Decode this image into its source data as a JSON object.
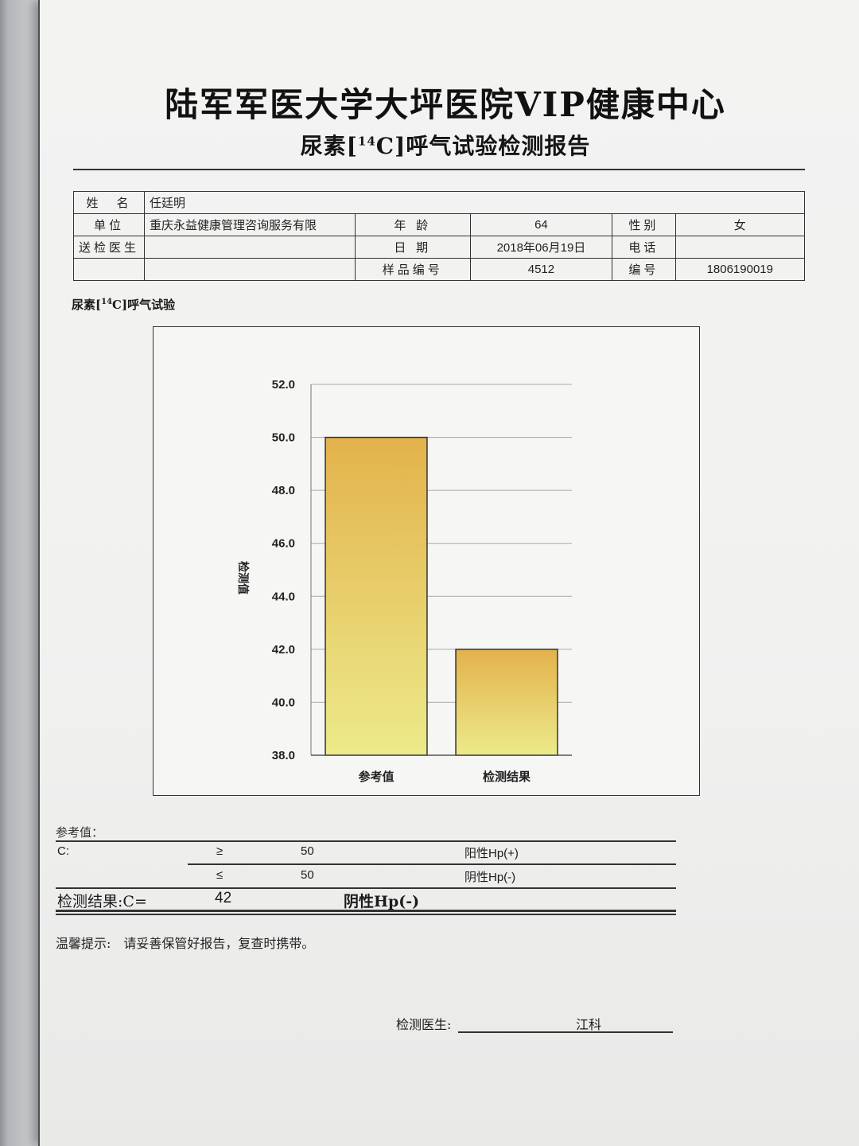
{
  "header": {
    "title": "陆军军医大学大坪医院VIP健康中心",
    "subtitle_prefix": "尿素[",
    "subtitle_sup": "14",
    "subtitle_suffix": "C]呼气试验检测报告"
  },
  "patient": {
    "name_label": "姓　名",
    "name": "任廷明",
    "unit_label": "单位",
    "unit": "重庆永益健康管理咨询服务有限",
    "doctor_label": "送检医生",
    "doctor": "",
    "age_label": "年 龄",
    "age": "64",
    "date_label": "日 期",
    "date": "2018年06月19日",
    "sample_label": "样品编号",
    "sample_no": "4512",
    "sex_label": "性别",
    "sex": "女",
    "phone_label": "电话",
    "phone": "",
    "id_label": "编号",
    "id_no": "1806190019"
  },
  "chart_heading": {
    "prefix": "尿素[",
    "sup": "14",
    "suffix": "C]呼气试验"
  },
  "chart_data": {
    "type": "bar",
    "categories": [
      "参考值",
      "检测结果"
    ],
    "values": [
      50,
      42
    ],
    "ylabel": "检测值",
    "ylim": [
      38,
      52
    ],
    "yticks": [
      "38.0",
      "40.0",
      "42.0",
      "44.0",
      "46.0",
      "48.0",
      "50.0",
      "52.0"
    ],
    "grid": true,
    "bar_color_top": "#e3b24c",
    "bar_color_bottom": "#ecea8a"
  },
  "reference": {
    "title": "参考值：",
    "c_label": "C:",
    "row1_op": "≥",
    "row1_value": "50",
    "row1_result": "阳性Hp(+)",
    "row2_op": "≤",
    "row2_value": "50",
    "row2_result": "阴性Hp(-)",
    "result_label": "检测结果:C=",
    "result_value": "42",
    "result_text": "阴性Hp(-)"
  },
  "tip": "温馨提示:　请妥善保管好报告，复查时携带。",
  "signature": {
    "label": "检测医生:",
    "name": "江科"
  }
}
